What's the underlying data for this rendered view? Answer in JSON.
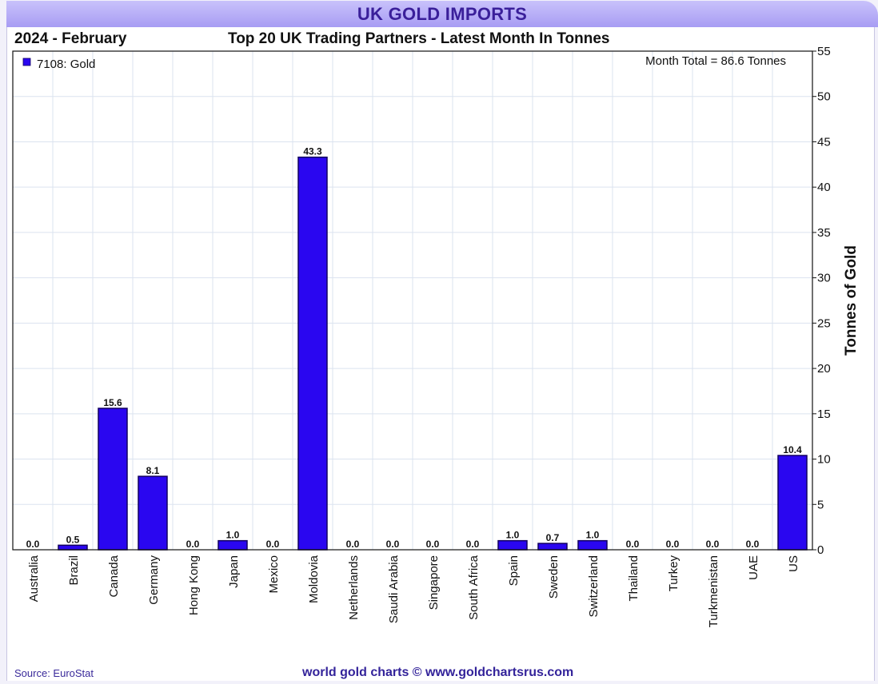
{
  "header": {
    "title": "UK GOLD IMPORTS",
    "period": "2024 - February",
    "subtitle": "Top 20 UK Trading Partners - Latest Month In Tonnes"
  },
  "chart_data": {
    "type": "bar",
    "categories": [
      "Australia",
      "Brazil",
      "Canada",
      "Germany",
      "Hong Kong",
      "Japan",
      "Mexico",
      "Moldovia",
      "Netherlands",
      "Saudi Arabia",
      "Singapore",
      "South Africa",
      "Spain",
      "Sweden",
      "Switzerland",
      "Thailand",
      "Turkey",
      "Turkmenistan",
      "UAE",
      "US"
    ],
    "series": [
      {
        "name": "7108: Gold",
        "values": [
          0.0,
          0.5,
          15.6,
          8.1,
          0.0,
          1.0,
          0.0,
          43.3,
          0.0,
          0.0,
          0.0,
          0.0,
          1.0,
          0.7,
          1.0,
          0.0,
          0.0,
          0.0,
          0.0,
          10.4
        ]
      }
    ],
    "value_labels": [
      "0.0",
      "0.5",
      "15.6",
      "8.1",
      "0.0",
      "1.0",
      "0.0",
      "43.3",
      "0.0",
      "0.0",
      "0.0",
      "0.0",
      "1.0",
      "0.7",
      "1.0",
      "0.0",
      "0.0",
      "0.0",
      "0.0",
      "10.4"
    ],
    "ylabel": "Tonnes of Gold",
    "ylim": [
      0,
      55
    ],
    "yticks": [
      "0",
      "5",
      "10",
      "15",
      "20",
      "25",
      "30",
      "35",
      "40",
      "45",
      "50",
      "55"
    ],
    "annotation": "Month Total = 86.6 Tonnes",
    "legend_position": "top-left",
    "grid": true,
    "y_axis_side": "right",
    "bar_color": "#2a06f0",
    "bar_edge_color": "#120060",
    "grid_color": "#dbe3ef"
  },
  "footer": {
    "source": "Source: EuroStat",
    "credit": "world gold charts © www.goldchartsrus.com"
  }
}
